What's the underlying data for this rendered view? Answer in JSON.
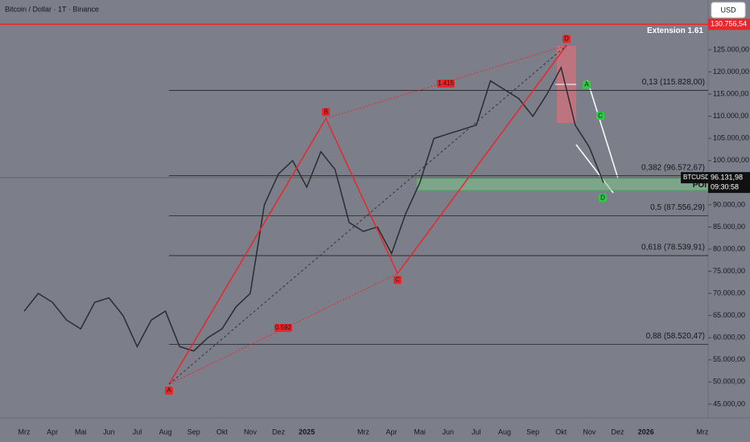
{
  "chart_data": {
    "type": "line",
    "title": "Bitcoin / Dollar · 1T · Binance",
    "currency": "USD",
    "categories": [
      "Mrz",
      null,
      "Apr",
      null,
      "Mai",
      null,
      "Jun",
      null,
      "Jul",
      null,
      "Aug",
      null,
      "Sep",
      null,
      "Okt",
      null,
      "Nov",
      null,
      "Dez",
      null,
      "2025",
      null,
      null,
      null,
      "Mrz",
      null,
      "Apr",
      null,
      "Mai",
      null,
      "Jun",
      null,
      "Jul",
      null,
      "Aug",
      null,
      "Sep",
      null,
      "Okt",
      null,
      "Nov",
      null,
      "Dez",
      null,
      "2026",
      null,
      null,
      null,
      "Mrz"
    ],
    "series": [
      {
        "name": "BTCUSD",
        "color": "#2a2c33",
        "values": [
          66000,
          70000,
          68000,
          64000,
          62000,
          68000,
          69000,
          65000,
          58000,
          64000,
          66000,
          58000,
          57000,
          60000,
          62000,
          67000,
          70000,
          90000,
          97000,
          100000,
          94000,
          102000,
          98000,
          86000,
          84000,
          85000,
          79000,
          88000,
          95000,
          105000,
          106000,
          107000,
          108000,
          118000,
          116000,
          114000,
          110000,
          115000,
          121000,
          108000,
          103000,
          95000,
          null,
          null,
          null,
          null,
          null,
          null,
          null
        ]
      }
    ],
    "ylim": [
      41900,
      136250
    ],
    "yticks": [
      {
        "value": 45000,
        "label": "45.000,00"
      },
      {
        "value": 50000,
        "label": "50.000,00"
      },
      {
        "value": 55000,
        "label": "55.000,00"
      },
      {
        "value": 60000,
        "label": "60.000,00"
      },
      {
        "value": 65000,
        "label": "65.000,00"
      },
      {
        "value": 70000,
        "label": "70.000,00"
      },
      {
        "value": 75000,
        "label": "75.000,00"
      },
      {
        "value": 80000,
        "label": "80.000,00"
      },
      {
        "value": 85000,
        "label": "85.000,00"
      },
      {
        "value": 90000,
        "label": "90.000,00"
      },
      {
        "value": 95000,
        "label": "95.000,00"
      },
      {
        "value": 100000,
        "label": "100.000,00"
      },
      {
        "value": 105000,
        "label": "105.000,00"
      },
      {
        "value": 110000,
        "label": "110.000,00"
      },
      {
        "value": 115000,
        "label": "115.000,00"
      },
      {
        "value": 120000,
        "label": "120.000,00"
      },
      {
        "value": 125000,
        "label": "125.000,00"
      }
    ],
    "levels": [
      {
        "label": "0,13 (115.828,00)",
        "value": 115828
      },
      {
        "label": "0,382 (96.572,67)",
        "value": 96572.67
      },
      {
        "label": "0,5 (87.556,29)",
        "value": 87556.29
      },
      {
        "label": "0,618 (78.539,91)",
        "value": 78539.91
      },
      {
        "label": "0,88 (58.520,47)",
        "value": 58520.47
      }
    ],
    "extension": {
      "label": "Extension 1.61",
      "value": 130756.54,
      "value_label": "130.756,54"
    },
    "last_price": {
      "symbol": "BTCUSD",
      "value": 96131.98,
      "value_label": "96.131,98",
      "countdown": "09:30:58"
    },
    "zone": {
      "label": "POI",
      "top": 96000,
      "bottom": 93300
    },
    "pattern": [
      {
        "label": "A",
        "value": 49500
      },
      {
        "label": "B",
        "value": 109500
      },
      {
        "label": "C",
        "value": 74500
      },
      {
        "label": "D",
        "value": 126000
      }
    ],
    "pattern_ratios": [
      "1.415",
      "0.592"
    ],
    "small_pattern": [
      {
        "label": "A",
        "value": 116000
      },
      {
        "label": "C",
        "value": 109000
      },
      {
        "label": "D",
        "value": 93000
      }
    ]
  }
}
